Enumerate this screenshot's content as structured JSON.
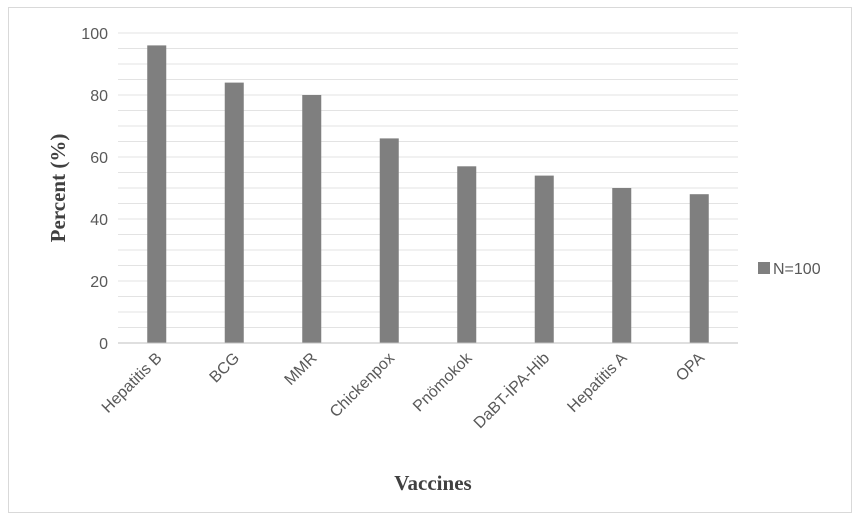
{
  "chart_data": {
    "type": "bar",
    "categories": [
      "Hepatitis B",
      "BCG",
      "MMR",
      "Chickenpox",
      "Pnömokok",
      "DaBT-İPA-Hib",
      "Hepatitis A",
      "OPA"
    ],
    "series": [
      {
        "name": "N=100",
        "values": [
          96,
          84,
          80,
          66,
          57,
          54,
          50,
          48
        ],
        "color": "#7f7f7f"
      }
    ],
    "xlabel": "Vaccines",
    "ylabel": "Percent (%)",
    "ylim": [
      0,
      100
    ],
    "yticks": [
      0,
      20,
      40,
      60,
      80,
      100
    ],
    "minor_grid_step": 5,
    "grid": true,
    "legend_position": "right"
  }
}
